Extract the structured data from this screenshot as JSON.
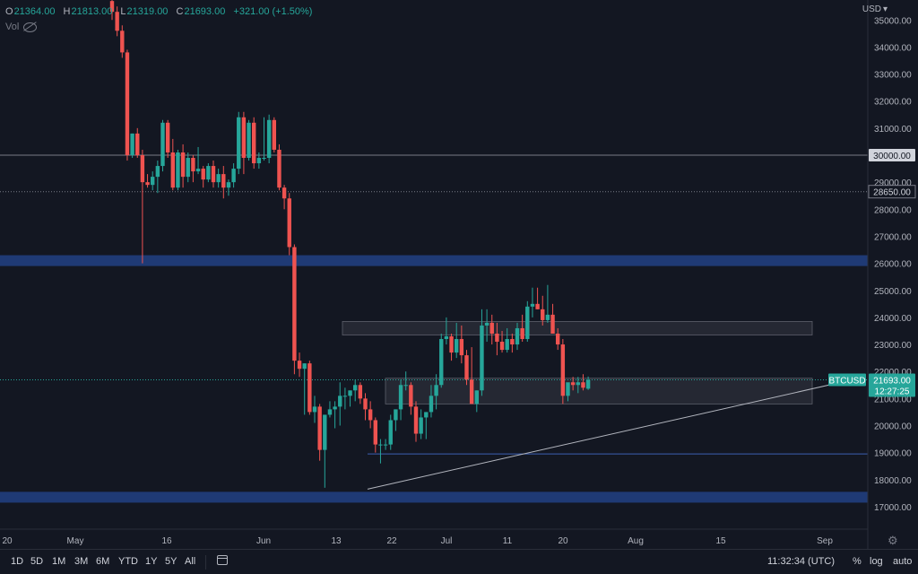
{
  "ohlc": {
    "open_label": "O",
    "open": "21364.00",
    "high_label": "H",
    "high": "21813.00",
    "low_label": "L",
    "low": "21319.00",
    "close_label": "C",
    "close": "21693.00",
    "change": "+321.00 (+1.50%)"
  },
  "volume_label": "Vol",
  "currency": "USD",
  "price_ticks": [
    "35000.00",
    "34000.00",
    "33000.00",
    "32000.00",
    "31000.00",
    "30000.00",
    "29000.00",
    "28000.00",
    "27000.00",
    "26000.00",
    "25000.00",
    "24000.00",
    "23000.00",
    "22000.00",
    "21000.00",
    "20000.00",
    "19000.00",
    "18000.00",
    "17000.00"
  ],
  "date_ticks": [
    "20",
    "May",
    "16",
    "Jun",
    "13",
    "22",
    "Jul",
    "11",
    "20",
    "Aug",
    "15",
    "Sep"
  ],
  "price_labels": {
    "level_30000": "30000.00",
    "level_28650": "28650.00",
    "symbol": "BTCUSD",
    "last_price": "21693.00",
    "countdown": "12:27:25"
  },
  "timeframes": [
    "1D",
    "5D",
    "1M",
    "3M",
    "6M",
    "YTD",
    "1Y",
    "5Y",
    "All"
  ],
  "clock": "11:32:34 (UTC)",
  "scale_buttons": {
    "percent": "%",
    "log": "log",
    "auto": "auto"
  },
  "colors": {
    "background": "#131722",
    "up": "#26a69a",
    "down": "#ef5350",
    "support_zone": "#1f3a75",
    "range_box": "#2a2e39",
    "grid_text": "#b2b5be"
  },
  "chart_data": {
    "type": "candlestick",
    "title": "",
    "ylim": [
      16500,
      35500
    ],
    "horizontal_levels": [
      30000,
      28650,
      18950
    ],
    "zones": [
      [
        25900,
        26300
      ],
      [
        17150,
        17550
      ],
      [
        23350,
        23850
      ],
      [
        20800,
        21750
      ]
    ],
    "trendline": [
      [
        17650,
        21750
      ]
    ],
    "last_price": 21693,
    "candles": [
      [
        35700,
        35800,
        35000,
        35300
      ],
      [
        35300,
        35500,
        34400,
        34600
      ],
      [
        34600,
        34800,
        33600,
        33800
      ],
      [
        33800,
        33900,
        29800,
        30000
      ],
      [
        30000,
        30800,
        29900,
        30800
      ],
      [
        30800,
        31000,
        29900,
        30000
      ],
      [
        30000,
        30200,
        26000,
        29000
      ],
      [
        29000,
        29300,
        28800,
        28900
      ],
      [
        28900,
        29400,
        28700,
        29200
      ],
      [
        29200,
        29800,
        28600,
        29600
      ],
      [
        29600,
        31300,
        29400,
        31200
      ],
      [
        31200,
        31300,
        29900,
        30100
      ],
      [
        30100,
        30600,
        28700,
        28800
      ],
      [
        28800,
        30200,
        28700,
        30100
      ],
      [
        30100,
        30400,
        28800,
        29200
      ],
      [
        29200,
        30100,
        29000,
        29900
      ],
      [
        29900,
        30000,
        29000,
        29400
      ],
      [
        29400,
        30300,
        29300,
        29500
      ],
      [
        29500,
        29600,
        28800,
        29100
      ],
      [
        29100,
        29700,
        29000,
        29600
      ],
      [
        29600,
        29800,
        28800,
        29000
      ],
      [
        29000,
        29500,
        28800,
        29300
      ],
      [
        29300,
        29600,
        28400,
        28800
      ],
      [
        28800,
        29100,
        28500,
        29000
      ],
      [
        29000,
        29700,
        28800,
        29500
      ],
      [
        29500,
        31600,
        29300,
        31400
      ],
      [
        31400,
        31600,
        29300,
        29900
      ],
      [
        29900,
        31300,
        29800,
        31200
      ],
      [
        31200,
        31400,
        29500,
        29700
      ],
      [
        29700,
        30100,
        29500,
        29900
      ],
      [
        29900,
        31400,
        29800,
        29900
      ],
      [
        29900,
        31500,
        29700,
        31300
      ],
      [
        31300,
        31400,
        30100,
        30200
      ],
      [
        30200,
        30400,
        28700,
        28800
      ],
      [
        28800,
        28900,
        28000,
        28400
      ],
      [
        28400,
        28600,
        26300,
        26600
      ],
      [
        26600,
        26700,
        21900,
        22400
      ],
      [
        22400,
        22700,
        21800,
        22100
      ],
      [
        22100,
        22300,
        20400,
        22300
      ],
      [
        22300,
        22400,
        20400,
        20500
      ],
      [
        20500,
        21100,
        20100,
        20700
      ],
      [
        20700,
        20800,
        18700,
        19100
      ],
      [
        19100,
        20400,
        17700,
        20400
      ],
      [
        20400,
        20900,
        20300,
        20600
      ],
      [
        20600,
        20900,
        19900,
        20700
      ],
      [
        20700,
        21600,
        20000,
        21100
      ],
      [
        21100,
        21400,
        20600,
        21100
      ],
      [
        21100,
        21300,
        20700,
        21300
      ],
      [
        21300,
        21700,
        20900,
        21500
      ],
      [
        21500,
        21600,
        20800,
        21000
      ],
      [
        21000,
        21200,
        20200,
        20600
      ],
      [
        20600,
        20900,
        19900,
        20200
      ],
      [
        20200,
        20300,
        19000,
        19300
      ],
      [
        19300,
        19500,
        18600,
        19300
      ],
      [
        19300,
        19500,
        19100,
        19300
      ],
      [
        19300,
        20400,
        19100,
        20200
      ],
      [
        20200,
        20600,
        19800,
        20600
      ],
      [
        20600,
        21700,
        20200,
        21500
      ],
      [
        21500,
        22000,
        21300,
        21500
      ],
      [
        21500,
        21600,
        20400,
        20700
      ],
      [
        20700,
        20900,
        19400,
        19700
      ],
      [
        19700,
        20600,
        19500,
        20300
      ],
      [
        20300,
        20500,
        19500,
        20500
      ],
      [
        20500,
        21500,
        20300,
        21100
      ],
      [
        21100,
        21900,
        20600,
        21500
      ],
      [
        21500,
        23400,
        21400,
        23200
      ],
      [
        23200,
        24000,
        23000,
        23300
      ],
      [
        23300,
        23400,
        22400,
        22700
      ],
      [
        22700,
        23800,
        22500,
        23200
      ],
      [
        23200,
        23700,
        22300,
        22600
      ],
      [
        22600,
        22800,
        21500,
        21700
      ],
      [
        21700,
        22900,
        20800,
        20800
      ],
      [
        20800,
        21300,
        20500,
        21300
      ],
      [
        21300,
        24300,
        21100,
        23700
      ],
      [
        23700,
        24300,
        23100,
        23800
      ],
      [
        23800,
        24100,
        23000,
        23400
      ],
      [
        23400,
        23800,
        22600,
        23100
      ],
      [
        23100,
        23500,
        22700,
        22800
      ],
      [
        22800,
        23600,
        22700,
        23200
      ],
      [
        23200,
        23400,
        22700,
        23000
      ],
      [
        23000,
        23800,
        22800,
        23600
      ],
      [
        23600,
        24100,
        23100,
        23200
      ],
      [
        23200,
        24600,
        23100,
        24400
      ],
      [
        24400,
        25100,
        24000,
        24500
      ],
      [
        24500,
        25100,
        24300,
        24300
      ],
      [
        24300,
        24800,
        23700,
        23900
      ],
      [
        23900,
        25200,
        23800,
        24100
      ],
      [
        24100,
        24500,
        23500,
        23400
      ],
      [
        23400,
        23600,
        22800,
        23000
      ],
      [
        23000,
        23200,
        20800,
        21100
      ],
      [
        21100,
        21500,
        20900,
        21600
      ],
      [
        21600,
        21800,
        21300,
        21500
      ],
      [
        21500,
        21800,
        21200,
        21600
      ],
      [
        21600,
        21900,
        21300,
        21400
      ],
      [
        21364,
        21813,
        21319,
        21693
      ]
    ]
  }
}
